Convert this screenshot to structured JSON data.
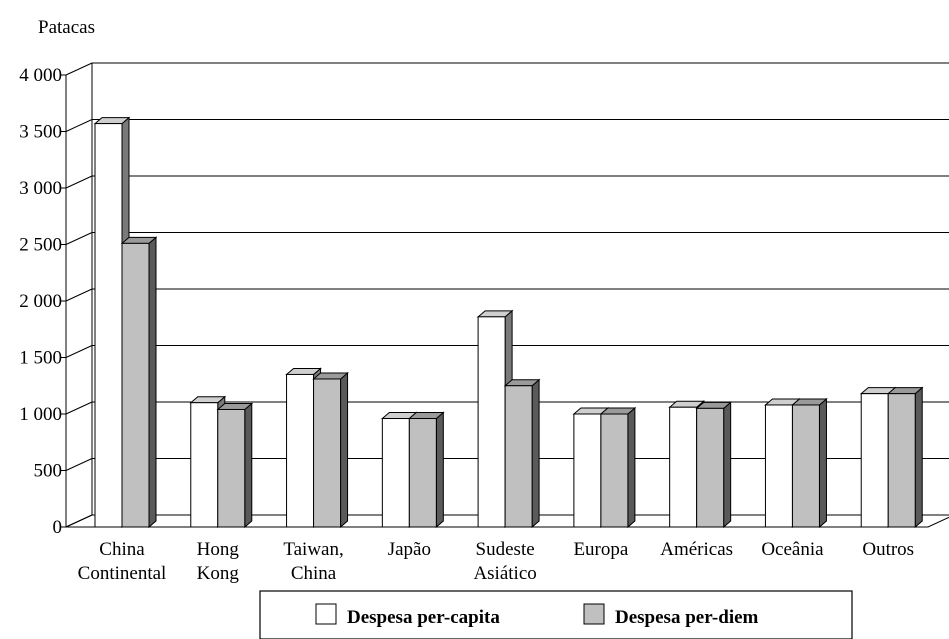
{
  "chart_data": {
    "type": "bar",
    "y_unit_label": "Patacas",
    "ylim": [
      0,
      4000
    ],
    "y_ticks": [
      {
        "value": 0,
        "label": "0"
      },
      {
        "value": 500,
        "label": "500"
      },
      {
        "value": 1000,
        "label": "1 000"
      },
      {
        "value": 1500,
        "label": "1 500"
      },
      {
        "value": 2000,
        "label": "2 000"
      },
      {
        "value": 2500,
        "label": "2 500"
      },
      {
        "value": 3000,
        "label": "3 000"
      },
      {
        "value": 3500,
        "label": "3 500"
      },
      {
        "value": 4000,
        "label": "4 000"
      }
    ],
    "grid": true,
    "legend_position": "bottom",
    "categories": [
      [
        "China",
        "Continental"
      ],
      [
        "Hong",
        "Kong"
      ],
      [
        "Taiwan,",
        "China"
      ],
      [
        "Japão"
      ],
      [
        "Sudeste",
        "Asiático"
      ],
      [
        "Europa"
      ],
      [
        "Américas"
      ],
      [
        "Oceânia"
      ],
      [
        "Outros"
      ]
    ],
    "series": [
      {
        "name": "Despesa per-capita",
        "color": "#ffffff",
        "values": [
          3570,
          1100,
          1350,
          960,
          1860,
          1000,
          1060,
          1080,
          1180
        ]
      },
      {
        "name": "Despesa per-diem",
        "color": "#c0c0c0",
        "values": [
          2510,
          1040,
          1310,
          960,
          1250,
          1000,
          1050,
          1080,
          1180
        ]
      }
    ]
  }
}
